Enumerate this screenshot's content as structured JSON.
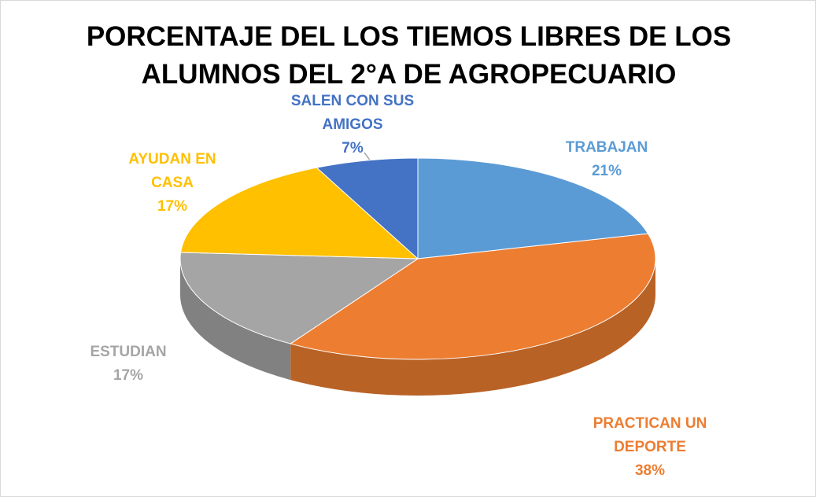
{
  "chart_data": {
    "type": "pie3d",
    "title": "PORCENTAJE DEL LOS TIEMOS LIBRES DE LOS ALUMNOS DEL 2°A DE AGROPECUARIO",
    "categories": [
      "TRABAJAN",
      "PRACTICAN UN DEPORTE",
      "ESTUDIAN",
      "AYUDAN EN CASA",
      "SALEN CON SUS AMIGOS"
    ],
    "values": [
      21,
      38,
      17,
      17,
      7
    ],
    "value_labels": [
      "21%",
      "38%",
      "17%",
      "17%",
      "7%"
    ],
    "colors": [
      "#5b9bd5",
      "#ed7d31",
      "#a5a5a5",
      "#ffc000",
      "#4472c4"
    ]
  }
}
